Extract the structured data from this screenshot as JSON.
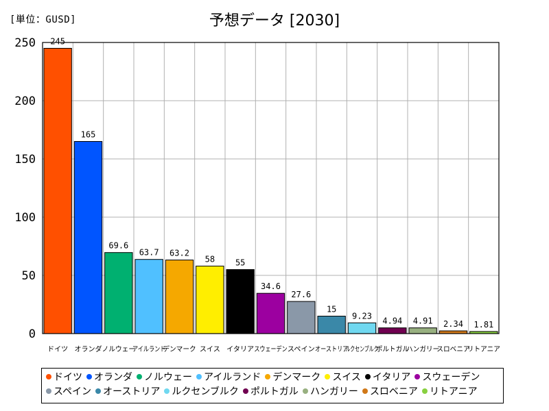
{
  "chart_data": {
    "type": "bar",
    "title": "予想データ [2030]",
    "unit_label": "[単位：GUSD]",
    "categories": [
      "ドイツ",
      "オランダ",
      "ノルウェー",
      "アイルランド",
      "デンマーク",
      "スイス",
      "イタリア",
      "スウェーデン",
      "スペイン",
      "オーストリア",
      "ルクセンブルク",
      "ポルトガル",
      "ハンガリー",
      "スロベニア",
      "リトアニア"
    ],
    "x_tick_labels": [
      "ドイツ",
      "オランダ",
      "ノルウェー",
      "アイルランド",
      "デンマーク",
      "スイス",
      "イタリア",
      "スウェーデン",
      "スペイン",
      "オーストリア",
      "ルクセンブルク",
      "ポルトガル",
      "ハンガリー",
      "スロベニア",
      "リトアニア"
    ],
    "values": [
      245,
      165,
      69.6,
      63.7,
      63.2,
      58,
      55,
      34.6,
      27.6,
      15,
      9.23,
      4.94,
      4.91,
      2.34,
      1.81
    ],
    "value_labels": [
      "245",
      "165",
      "69.6",
      "63.7",
      "63.2",
      "58",
      "55",
      "34.6",
      "27.6",
      "15",
      "9.23",
      "4.94",
      "4.91",
      "2.34",
      "1.81"
    ],
    "colors": [
      "#ff5000",
      "#0055ff",
      "#00b070",
      "#50c0ff",
      "#f5a800",
      "#ffee00",
      "#000000",
      "#9c00a0",
      "#8a98a8",
      "#3a88a8",
      "#70d8f0",
      "#700050",
      "#98b080",
      "#d07818",
      "#88d040"
    ],
    "ylim": [
      0,
      250
    ],
    "yticks": [
      0,
      50,
      100,
      150,
      200,
      250
    ],
    "grid": true,
    "legend_position": "bottom"
  }
}
